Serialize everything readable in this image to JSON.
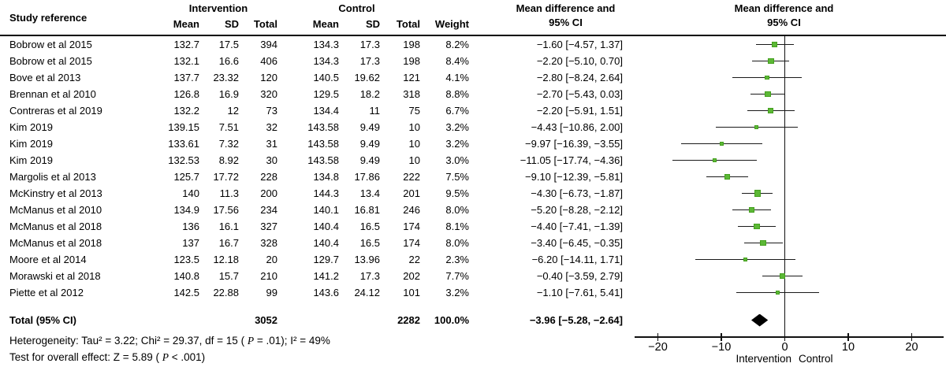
{
  "header": {
    "study": "Study reference",
    "intervention_group": "Intervention",
    "control_group": "Control",
    "mean": "Mean",
    "sd": "SD",
    "total": "Total",
    "weight": "Weight",
    "md_ci_line1": "Mean difference and",
    "md_ci_line2": "95% CI"
  },
  "rows": [
    {
      "study": "Bobrow et al 2015",
      "i_mean": "132.7",
      "i_sd": "17.5",
      "i_total": "394",
      "c_mean": "134.3",
      "c_sd": "17.3",
      "c_total": "198",
      "weight": "8.2%",
      "ci_text": "−1.60 [−4.57, 1.37]",
      "md": -1.6,
      "lo": -4.57,
      "hi": 1.37,
      "w": 8.2
    },
    {
      "study": "Bobrow et al 2015",
      "i_mean": "132.1",
      "i_sd": "16.6",
      "i_total": "406",
      "c_mean": "134.3",
      "c_sd": "17.3",
      "c_total": "198",
      "weight": "8.4%",
      "ci_text": "−2.20 [−5.10, 0.70]",
      "md": -2.2,
      "lo": -5.1,
      "hi": 0.7,
      "w": 8.4
    },
    {
      "study": "Bove et al 2013",
      "i_mean": "137.7",
      "i_sd": "23.32",
      "i_total": "120",
      "c_mean": "140.5",
      "c_sd": "19.62",
      "c_total": "121",
      "weight": "4.1%",
      "ci_text": "−2.80 [−8.24, 2.64]",
      "md": -2.8,
      "lo": -8.24,
      "hi": 2.64,
      "w": 4.1
    },
    {
      "study": "Brennan et al 2010",
      "i_mean": "126.8",
      "i_sd": "16.9",
      "i_total": "320",
      "c_mean": "129.5",
      "c_sd": "18.2",
      "c_total": "318",
      "weight": "8.8%",
      "ci_text": "−2.70 [−5.43, 0.03]",
      "md": -2.7,
      "lo": -5.43,
      "hi": 0.03,
      "w": 8.8
    },
    {
      "study": "Contreras et al 2019",
      "i_mean": "132.2",
      "i_sd": "12",
      "i_total": "73",
      "c_mean": "134.4",
      "c_sd": "11",
      "c_total": "75",
      "weight": "6.7%",
      "ci_text": "−2.20 [−5.91, 1.51]",
      "md": -2.2,
      "lo": -5.91,
      "hi": 1.51,
      "w": 6.7
    },
    {
      "study": "Kim 2019",
      "i_mean": "139.15",
      "i_sd": "7.51",
      "i_total": "32",
      "c_mean": "143.58",
      "c_sd": "9.49",
      "c_total": "10",
      "weight": "3.2%",
      "ci_text": "−4.43 [−10.86, 2.00]",
      "md": -4.43,
      "lo": -10.86,
      "hi": 2.0,
      "w": 3.2
    },
    {
      "study": "Kim 2019",
      "i_mean": "133.61",
      "i_sd": "7.32",
      "i_total": "31",
      "c_mean": "143.58",
      "c_sd": "9.49",
      "c_total": "10",
      "weight": "3.2%",
      "ci_text": "−9.97 [−16.39, −3.55]",
      "md": -9.97,
      "lo": -16.39,
      "hi": -3.55,
      "w": 3.2
    },
    {
      "study": "Kim 2019",
      "i_mean": "132.53",
      "i_sd": "8.92",
      "i_total": "30",
      "c_mean": "143.58",
      "c_sd": "9.49",
      "c_total": "10",
      "weight": "3.0%",
      "ci_text": "−11.05 [−17.74, −4.36]",
      "md": -11.05,
      "lo": -17.74,
      "hi": -4.36,
      "w": 3.0
    },
    {
      "study": "Margolis et al 2013",
      "i_mean": "125.7",
      "i_sd": "17.72",
      "i_total": "228",
      "c_mean": "134.8",
      "c_sd": "17.86",
      "c_total": "222",
      "weight": "7.5%",
      "ci_text": "−9.10 [−12.39, −5.81]",
      "md": -9.1,
      "lo": -12.39,
      "hi": -5.81,
      "w": 7.5
    },
    {
      "study": "McKinstry et al 2013",
      "i_mean": "140",
      "i_sd": "11.3",
      "i_total": "200",
      "c_mean": "144.3",
      "c_sd": "13.4",
      "c_total": "201",
      "weight": "9.5%",
      "ci_text": "−4.30 [−6.73, −1.87]",
      "md": -4.3,
      "lo": -6.73,
      "hi": -1.87,
      "w": 9.5
    },
    {
      "study": "McManus et al 2010",
      "i_mean": "134.9",
      "i_sd": "17.56",
      "i_total": "234",
      "c_mean": "140.1",
      "c_sd": "16.81",
      "c_total": "246",
      "weight": "8.0%",
      "ci_text": "−5.20 [−8.28, −2.12]",
      "md": -5.2,
      "lo": -8.28,
      "hi": -2.12,
      "w": 8.0
    },
    {
      "study": "McManus et al 2018",
      "i_mean": "136",
      "i_sd": "16.1",
      "i_total": "327",
      "c_mean": "140.4",
      "c_sd": "16.5",
      "c_total": "174",
      "weight": "8.1%",
      "ci_text": "−4.40 [−7.41, −1.39]",
      "md": -4.4,
      "lo": -7.41,
      "hi": -1.39,
      "w": 8.1
    },
    {
      "study": "McManus et al 2018",
      "i_mean": "137",
      "i_sd": "16.7",
      "i_total": "328",
      "c_mean": "140.4",
      "c_sd": "16.5",
      "c_total": "174",
      "weight": "8.0%",
      "ci_text": "−3.40 [−6.45, −0.35]",
      "md": -3.4,
      "lo": -6.45,
      "hi": -0.35,
      "w": 8.0
    },
    {
      "study": "Moore et al 2014",
      "i_mean": "123.5",
      "i_sd": "12.18",
      "i_total": "20",
      "c_mean": "129.7",
      "c_sd": "13.96",
      "c_total": "22",
      "weight": "2.3%",
      "ci_text": "−6.20 [−14.11, 1.71]",
      "md": -6.2,
      "lo": -14.11,
      "hi": 1.71,
      "w": 2.3
    },
    {
      "study": "Morawski et al 2018",
      "i_mean": "140.8",
      "i_sd": "15.7",
      "i_total": "210",
      "c_mean": "141.2",
      "c_sd": "17.3",
      "c_total": "202",
      "weight": "7.7%",
      "ci_text": "−0.40 [−3.59, 2.79]",
      "md": -0.4,
      "lo": -3.59,
      "hi": 2.79,
      "w": 7.7
    },
    {
      "study": "Piette et al 2012",
      "i_mean": "142.5",
      "i_sd": "22.88",
      "i_total": "99",
      "c_mean": "143.6",
      "c_sd": "24.12",
      "c_total": "101",
      "weight": "3.2%",
      "ci_text": "−1.10 [−7.61, 5.41]",
      "md": -1.1,
      "lo": -7.61,
      "hi": 5.41,
      "w": 3.2
    }
  ],
  "total_row": {
    "label": "Total (95% CI)",
    "i_total": "3052",
    "c_total": "2282",
    "weight": "100.0%",
    "ci_text": "−3.96 [−5.28, −2.64]",
    "md": -3.96,
    "lo": -5.28,
    "hi": -2.64
  },
  "footer": {
    "het_prefix": "Heterogeneity: Tau² = 3.22; Chi² = 29.37, df = 15 ( ",
    "het_p": "P",
    "het_suffix": " = .01); I² = 49%",
    "eff_prefix": "Test for overall effect: Z = 5.89 ( ",
    "eff_p": "P",
    "eff_suffix": " < .001)"
  },
  "axis": {
    "tick_values": [
      -20,
      -10,
      0,
      10,
      20
    ],
    "tick_labels": [
      "−20",
      "−10",
      "0",
      "10",
      "20"
    ],
    "label_left": "Intervention",
    "label_right": "Control"
  },
  "colors": {
    "marker_green": "#5cb836",
    "line_black": "#111111"
  },
  "chart_data": {
    "type": "scatter",
    "subtype": "forest-plot",
    "title": "Mean difference and 95% CI",
    "xlabel": "Intervention Control",
    "xlim": [
      -24,
      24
    ],
    "x_ticks": [
      -20,
      -10,
      0,
      10,
      20
    ],
    "studies": [
      "Bobrow et al 2015",
      "Bobrow et al 2015",
      "Bove et al 2013",
      "Brennan et al 2010",
      "Contreras et al 2019",
      "Kim 2019",
      "Kim 2019",
      "Kim 2019",
      "Margolis et al 2013",
      "McKinstry et al 2013",
      "McManus et al 2010",
      "McManus et al 2018",
      "McManus et al 2018",
      "Moore et al 2014",
      "Morawski et al 2018",
      "Piette et al 2012"
    ],
    "mean_difference": [
      -1.6,
      -2.2,
      -2.8,
      -2.7,
      -2.2,
      -4.43,
      -9.97,
      -11.05,
      -9.1,
      -4.3,
      -5.2,
      -4.4,
      -3.4,
      -6.2,
      -0.4,
      -1.1
    ],
    "ci_lower": [
      -4.57,
      -5.1,
      -8.24,
      -5.43,
      -5.91,
      -10.86,
      -16.39,
      -17.74,
      -12.39,
      -6.73,
      -8.28,
      -7.41,
      -6.45,
      -14.11,
      -3.59,
      -7.61
    ],
    "ci_upper": [
      1.37,
      0.7,
      2.64,
      0.03,
      1.51,
      2.0,
      -3.55,
      -4.36,
      -5.81,
      -1.87,
      -2.12,
      -1.39,
      -0.35,
      1.71,
      2.79,
      5.41
    ],
    "weights_pct": [
      8.2,
      8.4,
      4.1,
      8.8,
      6.7,
      3.2,
      3.2,
      3.0,
      7.5,
      9.5,
      8.0,
      8.1,
      8.0,
      2.3,
      7.7,
      3.2
    ],
    "intervention_totals": [
      394,
      406,
      120,
      320,
      73,
      32,
      31,
      30,
      228,
      200,
      234,
      327,
      328,
      20,
      210,
      99
    ],
    "control_totals": [
      198,
      198,
      121,
      318,
      75,
      10,
      10,
      10,
      222,
      201,
      246,
      174,
      174,
      22,
      202,
      101
    ],
    "summary": {
      "label": "Total (95% CI)",
      "mean_difference": -3.96,
      "ci": [
        -5.28,
        -2.64
      ],
      "weight_pct": 100.0,
      "intervention_total": 3052,
      "control_total": 2282
    },
    "heterogeneity": {
      "tau2": 3.22,
      "chi2": 29.37,
      "df": 15,
      "p": ".01",
      "i2_pct": 49
    },
    "overall_effect": {
      "z": 5.89,
      "p": "<.001"
    }
  }
}
